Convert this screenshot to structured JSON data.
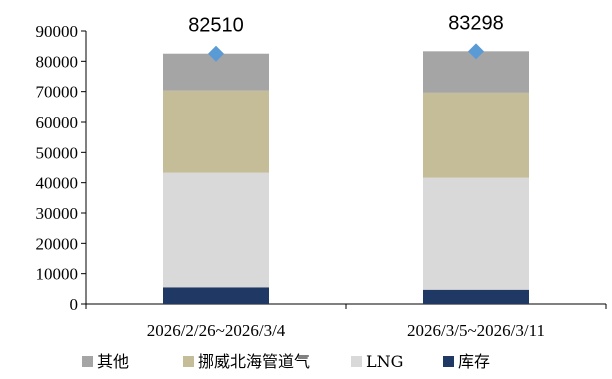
{
  "chart_data": {
    "type": "bar",
    "stacked": true,
    "categories": [
      "2026/2/26~2026/3/4",
      "2026/3/5~2026/3/11"
    ],
    "series": [
      {
        "name": "库存",
        "values": [
          5500,
          4700
        ],
        "color": "#1f3864"
      },
      {
        "name": "LNG",
        "values": [
          37800,
          37000
        ],
        "color": "#d9d9d9"
      },
      {
        "name": "挪威北海管道气",
        "values": [
          27000,
          27900
        ],
        "color": "#c4bd97"
      },
      {
        "name": "其他",
        "values": [
          12210,
          13698
        ],
        "color": "#a5a5a5"
      }
    ],
    "totals": {
      "values": [
        82510,
        83298
      ],
      "labels": [
        "82510",
        "83298"
      ],
      "marker": "diamond",
      "color": "#5b9bd5"
    },
    "ylim": [
      0,
      90000
    ],
    "yticks": [
      "0",
      "10000",
      "20000",
      "30000",
      "40000",
      "50000",
      "60000",
      "70000",
      "80000",
      "90000"
    ],
    "legend": {
      "position": "bottom",
      "order": [
        "其他",
        "挪威北海管道气",
        "LNG",
        "库存"
      ]
    },
    "grid": false
  }
}
